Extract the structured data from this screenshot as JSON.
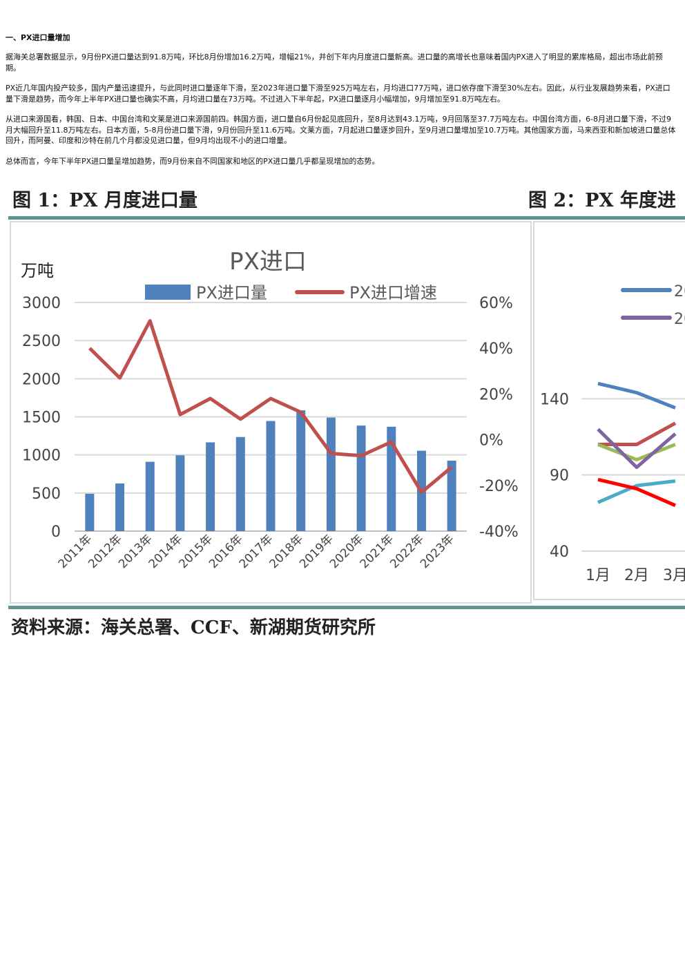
{
  "article": {
    "heading": "一、PX进口量增加",
    "paragraphs": [
      "据海关总署数据显示，9月份PX进口量达到91.8万吨，环比8月份增加16.2万吨，增幅21%，并创下年内月度进口量新高。进口量的高增长也意味着国内PX进入了明显的累库格局，超出市场此前预期。",
      "PX近几年国内投产较多，国内产量迅速提升，与此同时进口量逐年下滑，至2023年进口量下滑至925万吨左右，月均进口77万吨，进口依存度下滑至30%左右。因此，从行业发展趋势来看，PX进口量下滑是趋势，而今年上半年PX进口量也确实不高，月均进口量在73万吨。不过进入下半年起，PX进口量逐月小幅增加，9月增加至91.8万吨左右。",
      "从进口来源国看，韩国、日本、中国台湾和文莱是进口来源国前四。韩国方面，进口量自6月份起见底回升，至8月达到43.1万吨，9月回落至37.7万吨左右。中国台湾方面，6-8月进口量下滑，不过9月大幅回升至11.8万吨左右。日本方面，5-8月份进口量下滑，9月份回升至11.6万吨。文莱方面，7月起进口量逐步回升，至9月进口量增加至10.7万吨。其他国家方面，马来西亚和新加坡进口量总体回升，而阿曼、印度和沙特在前几个月都没见进口量，但9月均出现不小的进口增量。",
      "总体而言，今年下半年PX进口量呈增加趋势，而9月份来自不同国家和地区的PX进口量几乎都呈现增加的态势。"
    ]
  },
  "figure1": {
    "caption": "图 1：PX 月度进口量",
    "source": "资料来源：海关总署、CCF、新湖期货研究所"
  },
  "figure2": {
    "caption": "图 2：PX 年度进"
  },
  "chart_data": [
    {
      "type": "bar",
      "title": "PX进口",
      "ylabel": "万吨",
      "categories": [
        "2011年",
        "2012年",
        "2013年",
        "2014年",
        "2015年",
        "2016年",
        "2017年",
        "2018年",
        "2019年",
        "2020年",
        "2021年",
        "2022年",
        "2023年"
      ],
      "series": [
        {
          "name": "PX进口量",
          "type": "bar",
          "axis": "left",
          "color": "#4f81bd",
          "values": [
            490,
            625,
            910,
            995,
            1165,
            1235,
            1445,
            1585,
            1490,
            1385,
            1370,
            1055,
            925
          ]
        },
        {
          "name": "PX进口增速",
          "type": "line",
          "axis": "right",
          "color": "#c0504d",
          "values": [
            40,
            27,
            52,
            11,
            18,
            9,
            18,
            12,
            -6,
            -7,
            -1,
            -23,
            -12
          ]
        }
      ],
      "ylim": [
        0,
        3000
      ],
      "yticks": [
        "0",
        "500",
        "1000",
        "1500",
        "2000",
        "2500",
        "3000"
      ],
      "y2lim": [
        -40,
        60
      ],
      "y2ticks": [
        "-40%",
        "-20%",
        "0%",
        "20%",
        "40%",
        "60%"
      ],
      "grid": true,
      "legend": "top"
    },
    {
      "type": "line",
      "categories": [
        "1月",
        "2月",
        "3月"
      ],
      "yticks": [
        "40",
        "90",
        "140"
      ],
      "ylim": [
        40,
        190
      ],
      "legend_partial": [
        "20",
        "20"
      ],
      "series": [
        {
          "color": "#4f81bd",
          "values": [
            150,
            144,
            134
          ]
        },
        {
          "color": "#c0504d",
          "values": [
            110,
            110,
            124
          ]
        },
        {
          "color": "#9bbb59",
          "values": [
            110,
            100,
            110
          ]
        },
        {
          "color": "#8064a2",
          "values": [
            120,
            95,
            117
          ]
        },
        {
          "color": "#4bacc6",
          "values": [
            72,
            83,
            86
          ]
        },
        {
          "color": "#ff0000",
          "values": [
            87,
            81,
            70
          ]
        }
      ]
    }
  ]
}
